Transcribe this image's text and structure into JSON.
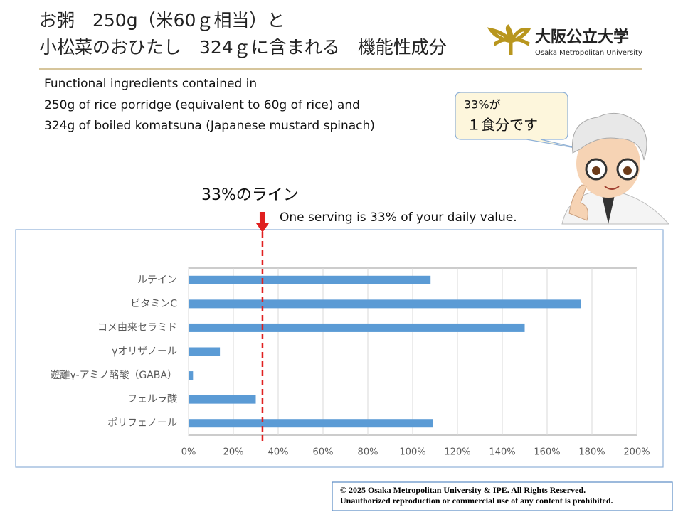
{
  "header": {
    "title_lines": [
      "お粥　250g（米60ｇ相当）と",
      "小松菜のおひたし　324ｇに含まれる　機能性成分"
    ],
    "logo_name": "大阪公立大学",
    "logo_subname": "Osaka Metropolitan University"
  },
  "subtitle_lines": [
    "Functional ingredients contained in",
    "250g of rice porridge (equivalent to 60g of rice) and",
    "324g of boiled komatsuna (Japanese mustard spinach)"
  ],
  "callout_lines": [
    "33%が",
    "１食分です"
  ],
  "note": "One serving is 33% of your daily value.",
  "chart_data": {
    "type": "bar",
    "orientation": "horizontal",
    "categories": [
      "ルテイン",
      "ビタミンC",
      "コメ由来セラミド",
      "γオリザノール",
      "遊離γ-アミノ酪酸（GABA）",
      "フェルラ酸",
      "ポリフェノール"
    ],
    "values": [
      108,
      175,
      150,
      14,
      2,
      30,
      109
    ],
    "color": "#5b9bd5",
    "xlim": [
      0,
      200
    ],
    "xticks": [
      {
        "value": 0,
        "label": "0%"
      },
      {
        "value": 20,
        "label": "20%"
      },
      {
        "value": 40,
        "label": "40%"
      },
      {
        "value": 60,
        "label": "60%"
      },
      {
        "value": 80,
        "label": "80%"
      },
      {
        "value": 100,
        "label": "100%"
      },
      {
        "value": 120,
        "label": "120%"
      },
      {
        "value": 140,
        "label": "140%"
      },
      {
        "value": 160,
        "label": "160%"
      },
      {
        "value": 180,
        "label": "180%"
      },
      {
        "value": 200,
        "label": "200%"
      }
    ],
    "grid": true,
    "reference_line": {
      "value": 33,
      "label": "33%のライン",
      "color": "#e02020"
    }
  },
  "copyright_lines": [
    "© 2025 Osaka Metropolitan University & IPE. All Rights Reserved.",
    "Unauthorized reproduction or commercial use of any content is prohibited."
  ]
}
